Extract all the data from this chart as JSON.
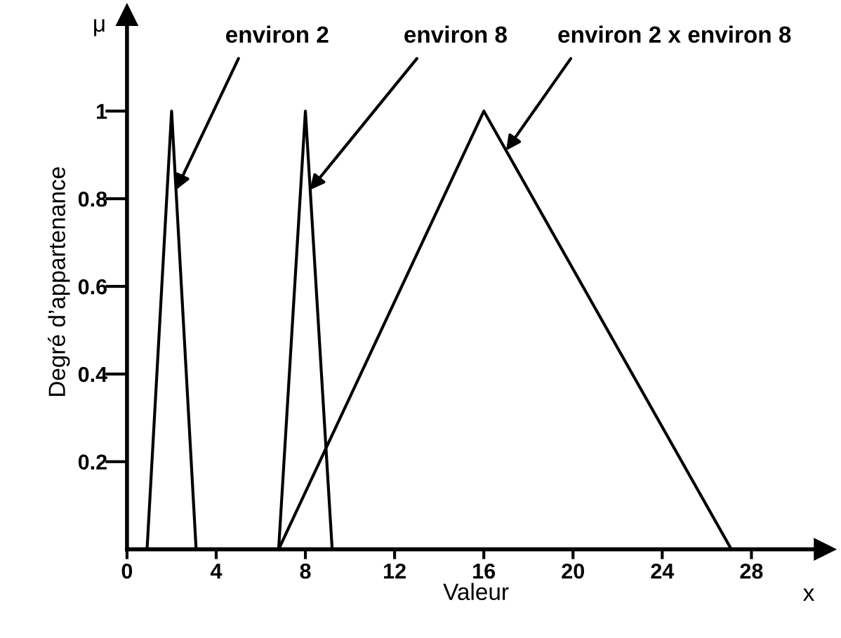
{
  "chart_data": {
    "type": "line",
    "xlabel": "Valeur",
    "ylabel": "Degré d’appartenance",
    "series": [
      {
        "color": "#000000",
        "x": [
          0.9,
          2,
          3.1
        ],
        "values": [
          0,
          1,
          0
        ]
      },
      {
        "color": "#000000",
        "x": [
          6.8,
          8,
          9.2
        ],
        "values": [
          0,
          1,
          0
        ]
      },
      {
        "color": "#000000",
        "x": [
          6.8,
          16,
          27.1
        ],
        "values": [
          0,
          1,
          0
        ]
      }
    ],
    "annotations": [
      {
        "text": "environ 2",
        "x": 2.2,
        "y": 0.82
      },
      {
        "text": "environ 8",
        "x": 8.2,
        "y": 0.82
      },
      {
        "text": "environ 2 x environ 8",
        "x": 17.0,
        "y": 0.91
      },
      "μ",
      "x"
    ],
    "xlim": [
      0,
      31.3
    ],
    "ylim": [
      0,
      1.22
    ],
    "xticks": [
      0,
      4,
      8,
      12,
      16,
      20,
      24,
      28
    ],
    "yticks": [
      0.2,
      0.4,
      0.6,
      0.8,
      1
    ],
    "grid": false,
    "marker": "none",
    "line_style": "solid"
  }
}
